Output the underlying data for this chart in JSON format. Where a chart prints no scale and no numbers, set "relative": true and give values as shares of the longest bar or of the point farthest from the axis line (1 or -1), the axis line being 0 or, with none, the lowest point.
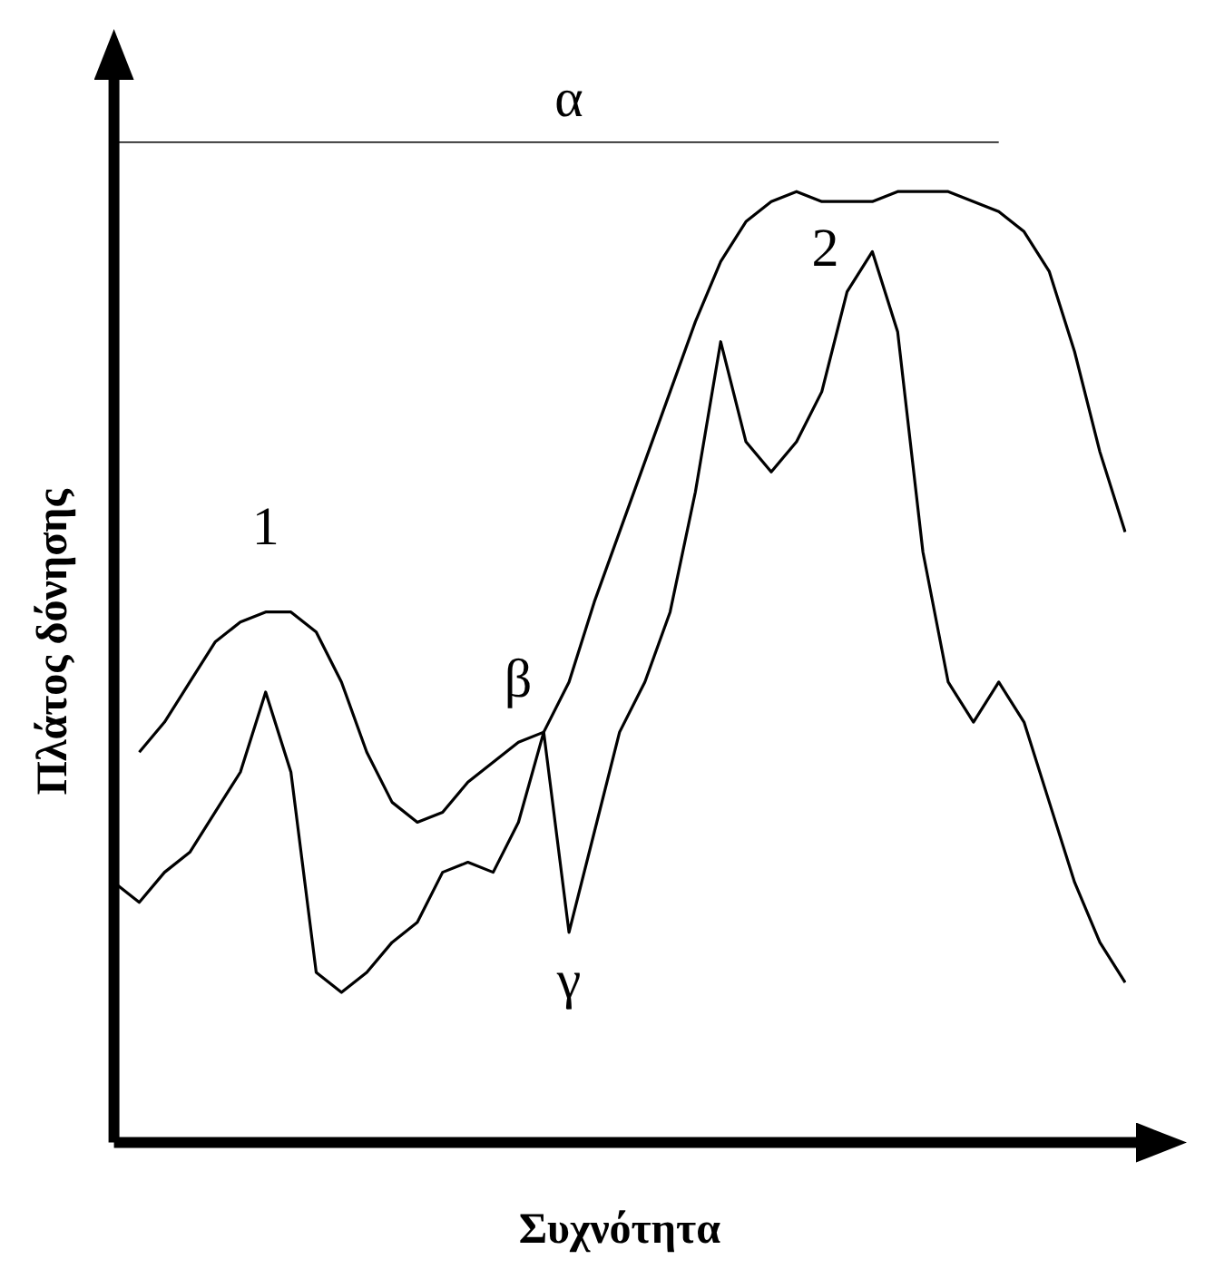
{
  "chart_data": {
    "type": "line",
    "relative": true,
    "xlabel": "Συχνότητα",
    "ylabel": "Πλάτος δόνησης",
    "grid": false,
    "legend": false,
    "marker": "none",
    "line_style": "solid",
    "categories": [
      null,
      null,
      null,
      null,
      null,
      null,
      null,
      null,
      null,
      null,
      null,
      null,
      null,
      null,
      null,
      null,
      null,
      null,
      null,
      null,
      null,
      null,
      null,
      null,
      null,
      null,
      null,
      null,
      null,
      null,
      null,
      null,
      null,
      null,
      null,
      null,
      null,
      null,
      null,
      null,
      null
    ],
    "series": [
      {
        "name": "α",
        "color": "#000000",
        "values": [
          1,
          1,
          1,
          1,
          1,
          1,
          1,
          1,
          1,
          1,
          1,
          1,
          1,
          1,
          1,
          1,
          1,
          1,
          1,
          1,
          1,
          1,
          1,
          1,
          1,
          1,
          1,
          1,
          1,
          1,
          1,
          1,
          1,
          1,
          1,
          1,
          null,
          null,
          null,
          null,
          null
        ]
      },
      {
        "name": "β",
        "color": "#000000",
        "values": [
          null,
          0.39,
          0.42,
          0.46,
          0.5,
          0.52,
          0.53,
          0.53,
          0.51,
          0.46,
          0.39,
          0.34,
          0.32,
          0.33,
          0.36,
          0.38,
          0.4,
          0.41,
          0.46,
          0.54,
          0.61,
          0.68,
          0.75,
          0.82,
          0.88,
          0.92,
          0.94,
          0.95,
          0.94,
          0.94,
          0.94,
          0.95,
          0.95,
          0.95,
          0.94,
          0.93,
          0.91,
          0.87,
          0.79,
          0.69,
          0.61
        ]
      },
      {
        "name": "γ",
        "color": "#000000",
        "values": [
          0.26,
          0.24,
          0.27,
          0.29,
          0.33,
          0.37,
          0.45,
          0.37,
          0.17,
          0.15,
          0.17,
          0.2,
          0.22,
          0.27,
          0.28,
          0.27,
          0.32,
          0.41,
          0.21,
          0.31,
          0.41,
          0.46,
          0.53,
          0.65,
          0.8,
          0.7,
          0.67,
          0.7,
          0.75,
          0.85,
          0.89,
          0.81,
          0.59,
          0.46,
          0.42,
          0.46,
          0.42,
          0.34,
          0.26,
          0.2,
          0.16
        ]
      }
    ],
    "annotations": [
      "1",
      "2"
    ]
  }
}
